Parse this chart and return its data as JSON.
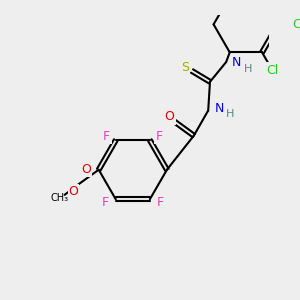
{
  "background_color": "#eeeeee",
  "bond_color": "#000000",
  "bond_width": 1.5,
  "atom_colors": {
    "C": "#000000",
    "N": "#0000dd",
    "O": "#dd0000",
    "S": "#aaaa00",
    "F": "#dd44bb",
    "Cl": "#22cc22",
    "H": "#558888"
  },
  "font_size": 9,
  "font_size_small": 7
}
